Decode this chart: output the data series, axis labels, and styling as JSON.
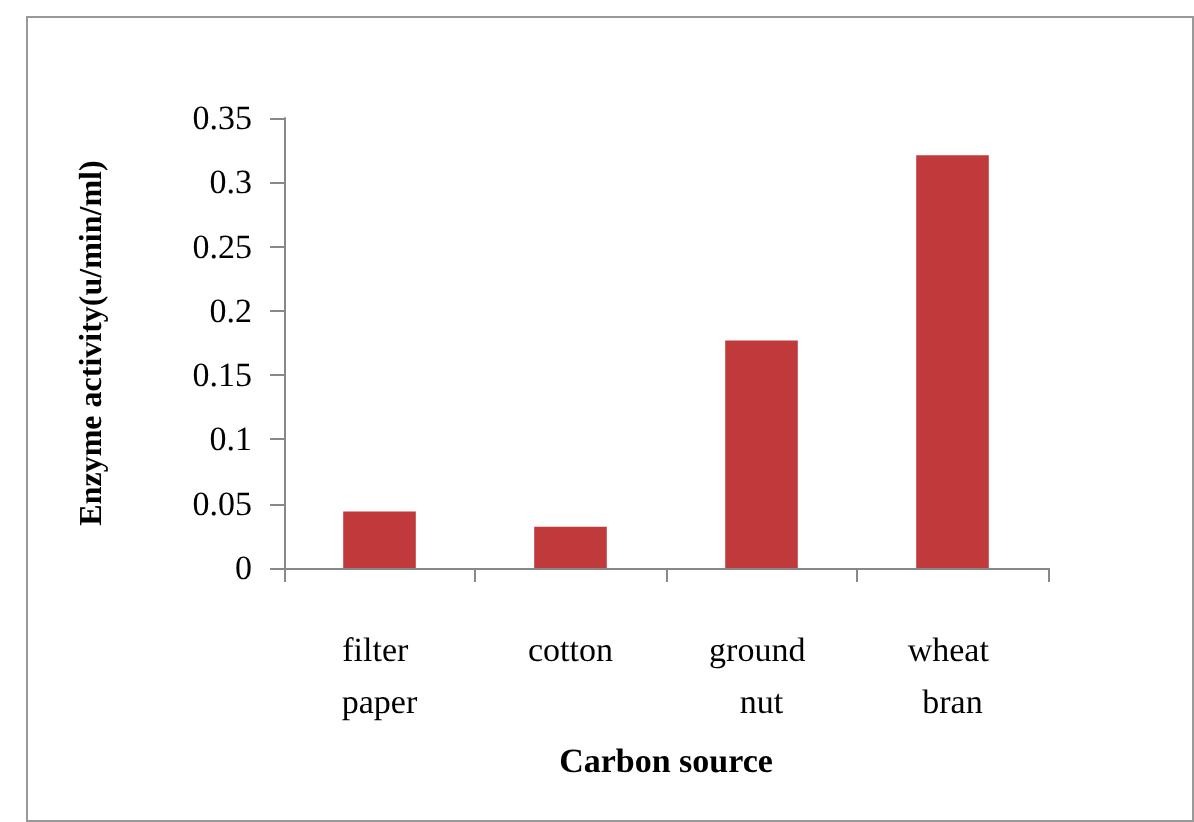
{
  "chart_data": {
    "type": "bar",
    "xlabel": "Carbon source",
    "ylabel": "Enzyme activity(u/min/ml)",
    "categories": [
      "filter paper",
      "cotton",
      "ground nut",
      "wheat bran"
    ],
    "values": [
      0.044,
      0.032,
      0.177,
      0.321
    ],
    "color": "#c0393b",
    "ylim": [
      0,
      0.35
    ],
    "yticks": [
      0,
      0.05,
      0.1,
      0.15,
      0.2,
      0.25,
      0.3,
      0.35
    ],
    "grid": false
  }
}
